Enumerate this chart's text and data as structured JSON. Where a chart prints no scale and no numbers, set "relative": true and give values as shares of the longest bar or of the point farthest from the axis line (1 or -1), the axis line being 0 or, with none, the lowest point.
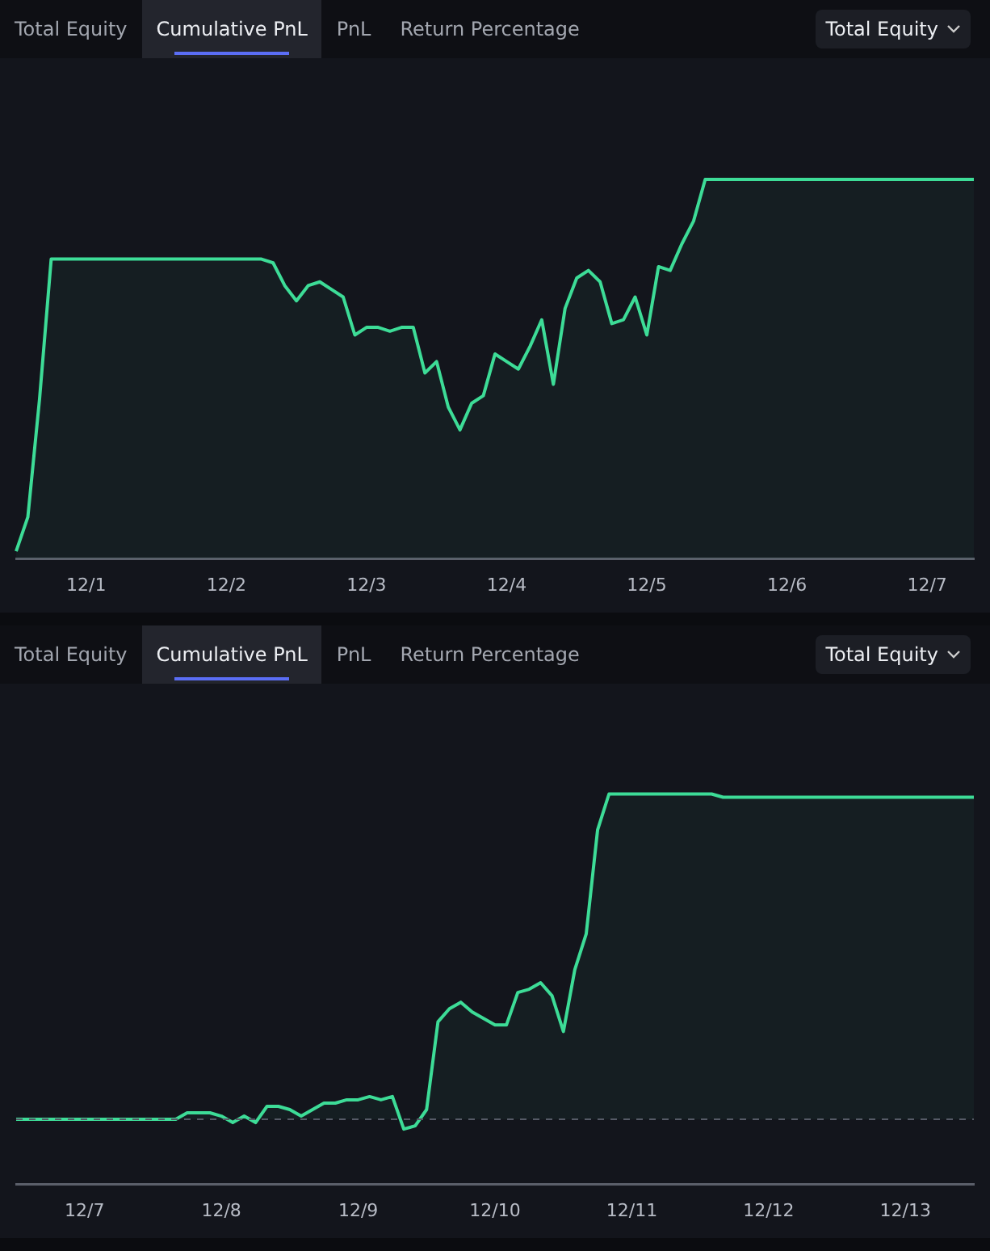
{
  "chart_data": [
    {
      "type": "area",
      "relative": true,
      "grid": false,
      "annotations": [
        "Total Equity",
        "Cumulative PnL",
        "PnL",
        "Return Percentage",
        "Total Equity"
      ],
      "categories": [
        null,
        null,
        null,
        null,
        null,
        null,
        "12/1",
        null,
        null,
        null,
        null,
        null,
        null,
        null,
        null,
        null,
        null,
        null,
        "12/2",
        null,
        null,
        null,
        null,
        null,
        null,
        null,
        null,
        null,
        null,
        null,
        "12/3",
        null,
        null,
        null,
        null,
        null,
        null,
        null,
        null,
        null,
        null,
        null,
        "12/4",
        null,
        null,
        null,
        null,
        null,
        null,
        null,
        null,
        null,
        null,
        null,
        "12/5",
        null,
        null,
        null,
        null,
        null,
        null,
        null,
        null,
        null,
        null,
        null,
        "12/6",
        null,
        null,
        null,
        null,
        null,
        null,
        null,
        null,
        null,
        null,
        null,
        "12/7",
        null,
        null,
        null,
        null
      ],
      "series": [
        {
          "color": "#3ddc97",
          "values": [
            0.02,
            0.11,
            0.42,
            0.79,
            0.79,
            0.79,
            0.79,
            0.79,
            0.79,
            0.79,
            0.79,
            0.79,
            0.79,
            0.79,
            0.79,
            0.79,
            0.79,
            0.79,
            0.79,
            0.79,
            0.79,
            0.79,
            0.78,
            0.72,
            0.68,
            0.72,
            0.73,
            0.71,
            0.69,
            0.59,
            0.61,
            0.61,
            0.6,
            0.61,
            0.61,
            0.49,
            0.52,
            0.4,
            0.34,
            0.41,
            0.43,
            0.54,
            0.52,
            0.5,
            0.56,
            0.63,
            0.46,
            0.66,
            0.74,
            0.76,
            0.73,
            0.62,
            0.63,
            0.69,
            0.59,
            0.77,
            0.76,
            0.83,
            0.89,
            1,
            1,
            1,
            1,
            1,
            1,
            1,
            1,
            1,
            1,
            1,
            1,
            1,
            1,
            1,
            1,
            1,
            1,
            1,
            1,
            1,
            1,
            1,
            1
          ]
        }
      ]
    },
    {
      "type": "area",
      "relative": true,
      "grid": false,
      "annotations": [
        "Total Equity",
        "Cumulative PnL",
        "PnL",
        "Return Percentage",
        "Total Equity"
      ],
      "categories": [
        null,
        null,
        null,
        null,
        null,
        null,
        "12/7",
        null,
        null,
        null,
        null,
        null,
        null,
        null,
        null,
        null,
        null,
        null,
        "12/8",
        null,
        null,
        null,
        null,
        null,
        null,
        null,
        null,
        null,
        null,
        null,
        "12/9",
        null,
        null,
        null,
        null,
        null,
        null,
        null,
        null,
        null,
        null,
        null,
        "12/10",
        null,
        null,
        null,
        null,
        null,
        null,
        null,
        null,
        null,
        null,
        null,
        "12/11",
        null,
        null,
        null,
        null,
        null,
        null,
        null,
        null,
        null,
        null,
        null,
        "12/12",
        null,
        null,
        null,
        null,
        null,
        null,
        null,
        null,
        null,
        null,
        null,
        "12/13",
        null,
        null,
        null,
        null,
        null,
        null
      ],
      "ref_lines": [
        {
          "axis": "y",
          "value": 0,
          "color": "#555a66",
          "line_style": "dashed"
        }
      ],
      "series": [
        {
          "color": "#3ddc97",
          "values": [
            0,
            0,
            0,
            0,
            0,
            0,
            0,
            0,
            0,
            0,
            0,
            0,
            0,
            0,
            0,
            0.02,
            0.02,
            0.02,
            0.01,
            -0.01,
            0.01,
            -0.01,
            0.04,
            0.04,
            0.03,
            0.01,
            0.03,
            0.05,
            0.05,
            0.06,
            0.06,
            0.07,
            0.06,
            0.07,
            -0.03,
            -0.02,
            0.03,
            0.3,
            0.34,
            0.36,
            0.33,
            0.31,
            0.29,
            0.29,
            0.39,
            0.4,
            0.42,
            0.38,
            0.27,
            0.46,
            0.57,
            0.89,
            1,
            1,
            1,
            1,
            1,
            1,
            1,
            1,
            1,
            1,
            0.99,
            0.99,
            0.99,
            0.99,
            0.99,
            0.99,
            0.99,
            0.99,
            0.99,
            0.99,
            0.99,
            0.99,
            0.99,
            0.99,
            0.99,
            0.99,
            0.99,
            0.99,
            0.99,
            0.99,
            0.99,
            0.99,
            0.99
          ]
        }
      ]
    }
  ]
}
